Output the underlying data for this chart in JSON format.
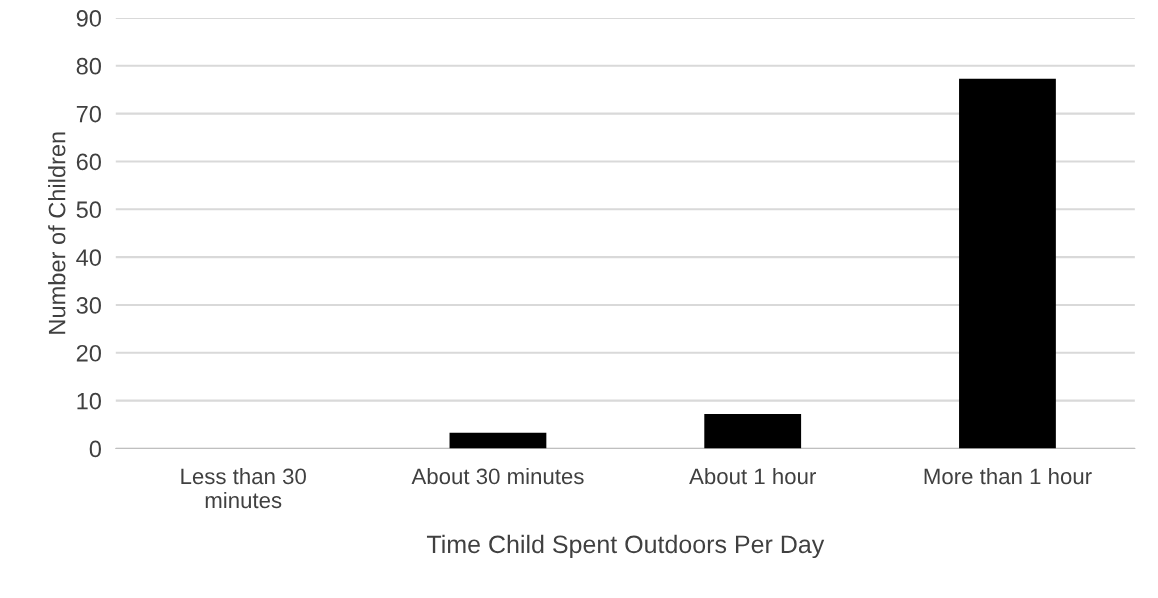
{
  "chart_data": {
    "type": "bar",
    "xlabel": "Time Child Spent Outdoors Per Day",
    "ylabel": "Number of Children",
    "categories": [
      "Less than 30\nminutes",
      "About 30 minutes",
      "About 1 hour",
      "More than 1 hour"
    ],
    "values": [
      0,
      3.3,
      7.2,
      77.3
    ],
    "color": "#000000",
    "ylim": [
      0,
      90
    ],
    "yticks": [
      0,
      10,
      20,
      30,
      40,
      50,
      60,
      70,
      80,
      90
    ],
    "grid": "y"
  }
}
